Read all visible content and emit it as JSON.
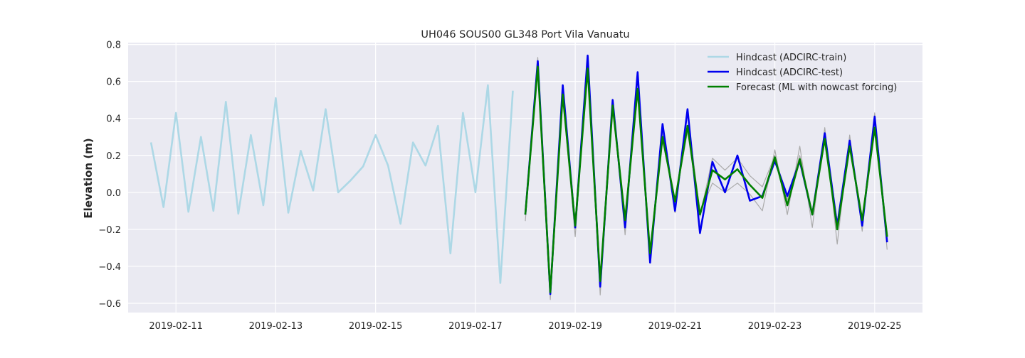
{
  "chart_data": {
    "type": "line",
    "title": "UH046 SOUS00 GL348 Port Vila Vanuatu",
    "xlabel": "",
    "ylabel": "Elevation (m)",
    "xlim": [
      "2019-02-10T01:00",
      "2019-02-25T23:00"
    ],
    "ylim": [
      -0.65,
      0.81
    ],
    "x_ticks": [
      "2019-02-11",
      "2019-02-13",
      "2019-02-15",
      "2019-02-17",
      "2019-02-19",
      "2019-02-21",
      "2019-02-23",
      "2019-02-25"
    ],
    "y_ticks": [
      -0.6,
      -0.4,
      -0.2,
      0.0,
      0.2,
      0.4,
      0.6,
      0.8
    ],
    "y_tick_labels": [
      "−0.6",
      "−0.4",
      "−0.2",
      "0.0",
      "0.2",
      "0.4",
      "0.6",
      "0.8"
    ],
    "grid": true,
    "legend_position": "top-right",
    "background_color": "#eaeaf2",
    "series": [
      {
        "name": "Hindcast (ADCIRC-train)",
        "color": "#add8e6",
        "legend": true,
        "x": [
          "2019-02-10T12:00",
          "2019-02-10T18:00",
          "2019-02-11T00:00",
          "2019-02-11T06:00",
          "2019-02-11T12:00",
          "2019-02-11T18:00",
          "2019-02-12T00:00",
          "2019-02-12T06:00",
          "2019-02-12T12:00",
          "2019-02-12T18:00",
          "2019-02-13T00:00",
          "2019-02-13T06:00",
          "2019-02-13T12:00",
          "2019-02-13T18:00",
          "2019-02-14T00:00",
          "2019-02-14T06:00",
          "2019-02-14T12:00",
          "2019-02-14T18:00",
          "2019-02-15T00:00",
          "2019-02-15T06:00",
          "2019-02-15T12:00",
          "2019-02-15T18:00",
          "2019-02-16T00:00",
          "2019-02-16T06:00",
          "2019-02-16T12:00",
          "2019-02-16T18:00",
          "2019-02-17T00:00",
          "2019-02-17T06:00",
          "2019-02-17T12:00",
          "2019-02-17T18:00"
        ],
        "y": [
          0.27,
          -0.08,
          0.43,
          -0.105,
          0.3,
          -0.1,
          0.49,
          -0.115,
          0.31,
          -0.07,
          0.51,
          -0.11,
          0.225,
          0.01,
          0.45,
          0.0,
          0.065,
          0.14,
          0.31,
          0.145,
          -0.17,
          0.27,
          0.145,
          0.36,
          -0.33,
          0.43,
          0.0,
          0.58,
          -0.49,
          0.55
        ]
      },
      {
        "name": "",
        "color": "#aaaaaa",
        "legend": false,
        "x": [
          "2019-02-18T00:00",
          "2019-02-18T06:00",
          "2019-02-18T12:00",
          "2019-02-18T18:00",
          "2019-02-19T00:00",
          "2019-02-19T06:00",
          "2019-02-19T12:00",
          "2019-02-19T18:00",
          "2019-02-20T00:00",
          "2019-02-20T06:00",
          "2019-02-20T12:00",
          "2019-02-20T18:00",
          "2019-02-21T00:00",
          "2019-02-21T06:00",
          "2019-02-21T12:00",
          "2019-02-21T18:00",
          "2019-02-22T00:00",
          "2019-02-22T06:00",
          "2019-02-22T12:00",
          "2019-02-22T18:00",
          "2019-02-23T00:00",
          "2019-02-23T06:00",
          "2019-02-23T12:00",
          "2019-02-23T18:00",
          "2019-02-24T00:00",
          "2019-02-24T06:00",
          "2019-02-24T12:00",
          "2019-02-24T18:00",
          "2019-02-25T00:00",
          "2019-02-25T06:00"
        ],
        "y": [
          -0.155,
          0.73,
          -0.58,
          0.52,
          -0.24,
          0.72,
          -0.555,
          0.49,
          -0.23,
          0.62,
          -0.36,
          0.33,
          -0.11,
          0.43,
          -0.11,
          0.05,
          0.0,
          0.05,
          -0.01,
          -0.1,
          0.23,
          -0.12,
          0.25,
          -0.19,
          0.35,
          -0.28,
          0.31,
          -0.21,
          0.43,
          -0.31
        ]
      },
      {
        "name": "",
        "color": "#aaaaaa",
        "legend": false,
        "x": [
          "2019-02-18T00:00",
          "2019-02-18T06:00",
          "2019-02-18T12:00",
          "2019-02-18T18:00",
          "2019-02-19T00:00",
          "2019-02-19T06:00",
          "2019-02-19T12:00",
          "2019-02-19T18:00",
          "2019-02-20T00:00",
          "2019-02-20T06:00",
          "2019-02-20T12:00",
          "2019-02-20T18:00",
          "2019-02-21T00:00",
          "2019-02-21T06:00",
          "2019-02-21T12:00",
          "2019-02-21T18:00",
          "2019-02-22T00:00",
          "2019-02-22T06:00",
          "2019-02-22T12:00",
          "2019-02-22T18:00",
          "2019-02-23T00:00",
          "2019-02-23T06:00",
          "2019-02-23T12:00",
          "2019-02-23T18:00",
          "2019-02-24T00:00",
          "2019-02-24T06:00",
          "2019-02-24T12:00",
          "2019-02-24T18:00",
          "2019-02-25T00:00",
          "2019-02-25T06:00"
        ],
        "y": [
          -0.11,
          0.67,
          -0.53,
          0.51,
          -0.17,
          0.65,
          -0.46,
          0.44,
          -0.12,
          0.53,
          -0.3,
          0.28,
          -0.05,
          0.33,
          -0.13,
          0.185,
          0.12,
          0.185,
          0.09,
          0.03,
          0.2,
          -0.04,
          0.2,
          -0.11,
          0.3,
          -0.16,
          0.26,
          -0.14,
          0.33,
          -0.22
        ]
      },
      {
        "name": "Hindcast (ADCIRC-test)",
        "color": "#0000ee",
        "legend": true,
        "x": [
          "2019-02-18T00:00",
          "2019-02-18T06:00",
          "2019-02-18T12:00",
          "2019-02-18T18:00",
          "2019-02-19T00:00",
          "2019-02-19T06:00",
          "2019-02-19T12:00",
          "2019-02-19T18:00",
          "2019-02-20T00:00",
          "2019-02-20T06:00",
          "2019-02-20T12:00",
          "2019-02-20T18:00",
          "2019-02-21T00:00",
          "2019-02-21T06:00",
          "2019-02-21T12:00",
          "2019-02-21T18:00",
          "2019-02-22T00:00",
          "2019-02-22T06:00",
          "2019-02-22T12:00",
          "2019-02-22T18:00",
          "2019-02-23T00:00",
          "2019-02-23T06:00",
          "2019-02-23T12:00",
          "2019-02-23T18:00",
          "2019-02-24T00:00",
          "2019-02-24T06:00",
          "2019-02-24T12:00",
          "2019-02-24T18:00",
          "2019-02-25T00:00",
          "2019-02-25T06:00"
        ],
        "y": [
          -0.12,
          0.71,
          -0.55,
          0.58,
          -0.19,
          0.74,
          -0.51,
          0.5,
          -0.19,
          0.65,
          -0.38,
          0.37,
          -0.1,
          0.45,
          -0.22,
          0.165,
          0.0,
          0.2,
          -0.045,
          -0.02,
          0.17,
          -0.02,
          0.17,
          -0.12,
          0.32,
          -0.18,
          0.28,
          -0.18,
          0.41,
          -0.27
        ]
      },
      {
        "name": "Forecast (ML with nowcast forcing)",
        "color": "#008000",
        "legend": true,
        "x": [
          "2019-02-18T00:00",
          "2019-02-18T06:00",
          "2019-02-18T12:00",
          "2019-02-18T18:00",
          "2019-02-19T00:00",
          "2019-02-19T06:00",
          "2019-02-19T12:00",
          "2019-02-19T18:00",
          "2019-02-20T00:00",
          "2019-02-20T06:00",
          "2019-02-20T12:00",
          "2019-02-20T18:00",
          "2019-02-21T00:00",
          "2019-02-21T06:00",
          "2019-02-21T12:00",
          "2019-02-21T18:00",
          "2019-02-22T00:00",
          "2019-02-22T06:00",
          "2019-02-22T12:00",
          "2019-02-22T18:00",
          "2019-02-23T00:00",
          "2019-02-23T06:00",
          "2019-02-23T12:00",
          "2019-02-23T18:00",
          "2019-02-24T00:00",
          "2019-02-24T06:00",
          "2019-02-24T12:00",
          "2019-02-24T18:00",
          "2019-02-25T00:00",
          "2019-02-25T06:00"
        ],
        "y": [
          -0.12,
          0.68,
          -0.54,
          0.53,
          -0.18,
          0.67,
          -0.48,
          0.47,
          -0.15,
          0.56,
          -0.33,
          0.3,
          -0.05,
          0.36,
          -0.12,
          0.12,
          0.07,
          0.125,
          0.04,
          -0.03,
          0.19,
          -0.07,
          0.18,
          -0.12,
          0.29,
          -0.2,
          0.25,
          -0.15,
          0.35,
          -0.24
        ]
      }
    ]
  }
}
